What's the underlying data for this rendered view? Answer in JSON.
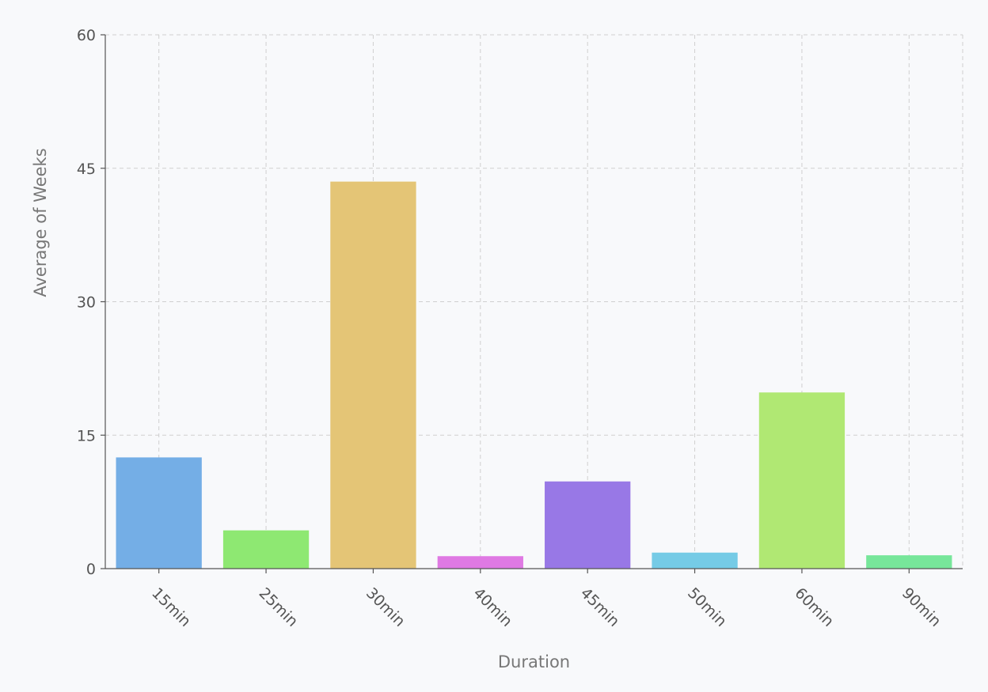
{
  "chart_data": {
    "type": "bar",
    "categories": [
      "15min",
      "25min",
      "30min",
      "40min",
      "45min",
      "50min",
      "60min",
      "90min"
    ],
    "values": [
      12.5,
      4.3,
      43.5,
      1.4,
      9.8,
      1.8,
      19.8,
      1.5
    ],
    "colors": [
      "#74aee6",
      "#8ee872",
      "#e4c576",
      "#df79e3",
      "#9878e6",
      "#75cbe6",
      "#b0e873",
      "#77e69a"
    ],
    "xlabel": "Duration",
    "ylabel": "Average of Weeks",
    "yticks": [
      0,
      15,
      30,
      45,
      60
    ],
    "ylim": [
      0,
      60
    ],
    "grid": true,
    "x_tick_rotation": 45
  }
}
